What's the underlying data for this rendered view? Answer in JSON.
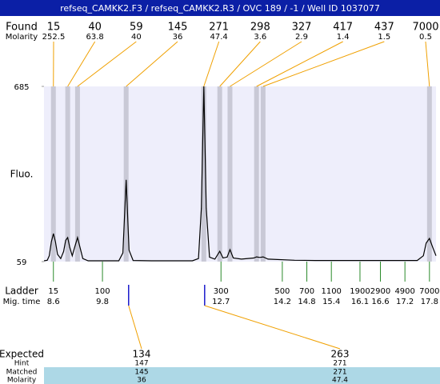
{
  "chart_data": {
    "type": "line",
    "title": "refseq_CAMKK2.F3 / refseq_CAMKK2.R3 / OVC 189 / -1 / Well ID 1037077",
    "ylabel": "Fluo.",
    "ylim": [
      59,
      685
    ],
    "yticks": [
      59,
      685
    ],
    "xlim": [
      8.37,
      17.96
    ],
    "color": "#000000",
    "x": [
      8.37,
      8.45,
      8.5,
      8.55,
      8.6,
      8.65,
      8.7,
      8.78,
      8.85,
      8.9,
      8.95,
      9.0,
      9.06,
      9.12,
      9.19,
      9.25,
      9.32,
      9.45,
      10.2,
      10.3,
      10.38,
      10.45,
      10.55,
      11.0,
      12.0,
      12.15,
      12.22,
      12.28,
      12.34,
      12.42,
      12.55,
      12.67,
      12.75,
      12.85,
      12.92,
      13.0,
      13.2,
      13.5,
      13.57,
      13.65,
      13.73,
      13.85,
      14.5,
      15.0,
      17.5,
      17.65,
      17.72,
      17.8,
      17.88,
      17.96
    ],
    "values": [
      62,
      64,
      80,
      130,
      159,
      130,
      85,
      70,
      95,
      135,
      145,
      110,
      80,
      110,
      145,
      110,
      70,
      62,
      62,
      90,
      351,
      100,
      63,
      62,
      62,
      70,
      250,
      685,
      250,
      75,
      68,
      96,
      72,
      75,
      102,
      72,
      68,
      72,
      76,
      74,
      76,
      68,
      64,
      63,
      63,
      80,
      125,
      142,
      110,
      80
    ],
    "found": {
      "label": "Found",
      "molarity_label": "Molarity",
      "sizes": [
        15,
        40,
        59,
        145,
        271,
        298,
        327,
        417,
        437,
        7000
      ],
      "molarity": [
        252.5,
        63.8,
        40,
        36,
        47.4,
        3.6,
        2.9,
        1.4,
        1.5,
        0.5
      ],
      "times": [
        8.6,
        8.95,
        9.19,
        10.38,
        12.28,
        12.67,
        12.92,
        13.57,
        13.73,
        17.8
      ]
    },
    "ladder": {
      "label": "Ladder",
      "time_label": "Mig. time",
      "sizes": [
        15,
        100,
        300,
        500,
        700,
        1100,
        1900,
        2900,
        4900,
        7000
      ],
      "times": [
        8.6,
        9.8,
        12.7,
        14.2,
        14.8,
        15.4,
        16.1,
        16.6,
        17.2,
        17.8
      ]
    },
    "expected": {
      "row_labels": [
        "Expected",
        "Hint",
        "Matched",
        "Molarity"
      ],
      "columns": [
        {
          "time": 10.44,
          "values": [
            134,
            147,
            145,
            36
          ]
        },
        {
          "time": 12.3,
          "values": [
            263,
            271,
            271,
            47.4
          ]
        }
      ]
    }
  }
}
